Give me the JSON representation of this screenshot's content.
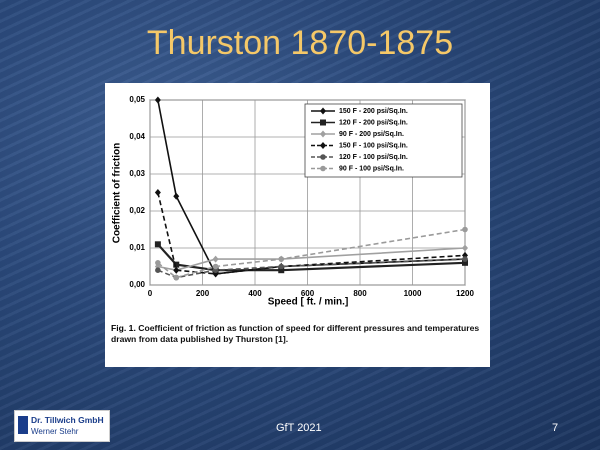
{
  "slide": {
    "title": "Thurston 1870-1875",
    "footer": "GfT 2021",
    "page_number": "7",
    "logo_company": "Dr. Tillwich GmbH",
    "logo_person": "Werner Stehr"
  },
  "chart_data": {
    "type": "line",
    "ylabel": "Coefficient of friction",
    "xlabel": "Speed [ ft. / min.]",
    "caption_label": "Fig. 1.",
    "caption": "Coefficient of friction as function of speed for different pressures and temperatures drawn from data published by Thurston [1].",
    "x": [
      30,
      100,
      250,
      500,
      1200
    ],
    "xlim": [
      0,
      1200
    ],
    "xticks": [
      0,
      200,
      400,
      600,
      800,
      1000,
      1200
    ],
    "ylim": [
      0,
      0.05
    ],
    "yticks": [
      {
        "value": 0,
        "label": "0,00"
      },
      {
        "value": 0.01,
        "label": "0,01"
      },
      {
        "value": 0.02,
        "label": "0,02"
      },
      {
        "value": 0.03,
        "label": "0,03"
      },
      {
        "value": 0.04,
        "label": "0,04"
      },
      {
        "value": 0.05,
        "label": "0,05"
      }
    ],
    "grid": true,
    "legend": "upper right",
    "series": [
      {
        "name": "150 F - 200 psi/Sq.In.",
        "color": "#111111",
        "dashed": false,
        "marker": "diamond",
        "values": [
          0.05,
          0.024,
          0.003,
          0.005,
          0.007
        ]
      },
      {
        "name": "120 F - 200 psi/Sq.In.",
        "color": "#222222",
        "dashed": false,
        "marker": "square",
        "values": [
          0.011,
          0.0055,
          0.004,
          0.004,
          0.006
        ]
      },
      {
        "name": "90 F - 200 psi/Sq.In.",
        "color": "#a0a0a0",
        "dashed": false,
        "marker": "diamond",
        "values": [
          0.005,
          0.004,
          0.007,
          0.007,
          0.01
        ]
      },
      {
        "name": "150 F - 100 psi/Sq.In.",
        "color": "#111111",
        "dashed": true,
        "marker": "diamond",
        "values": [
          0.025,
          0.004,
          0.003,
          0.005,
          0.008
        ]
      },
      {
        "name": "120 F - 100 psi/Sq.In.",
        "color": "#555555",
        "dashed": true,
        "marker": "circle",
        "values": [
          0.004,
          0.002,
          0.004,
          0.005,
          0.007
        ]
      },
      {
        "name": "90 F - 100 psi/Sq.In.",
        "color": "#9a9a9a",
        "dashed": true,
        "marker": "circle",
        "values": [
          0.006,
          0.002,
          0.005,
          0.007,
          0.015
        ]
      }
    ]
  }
}
